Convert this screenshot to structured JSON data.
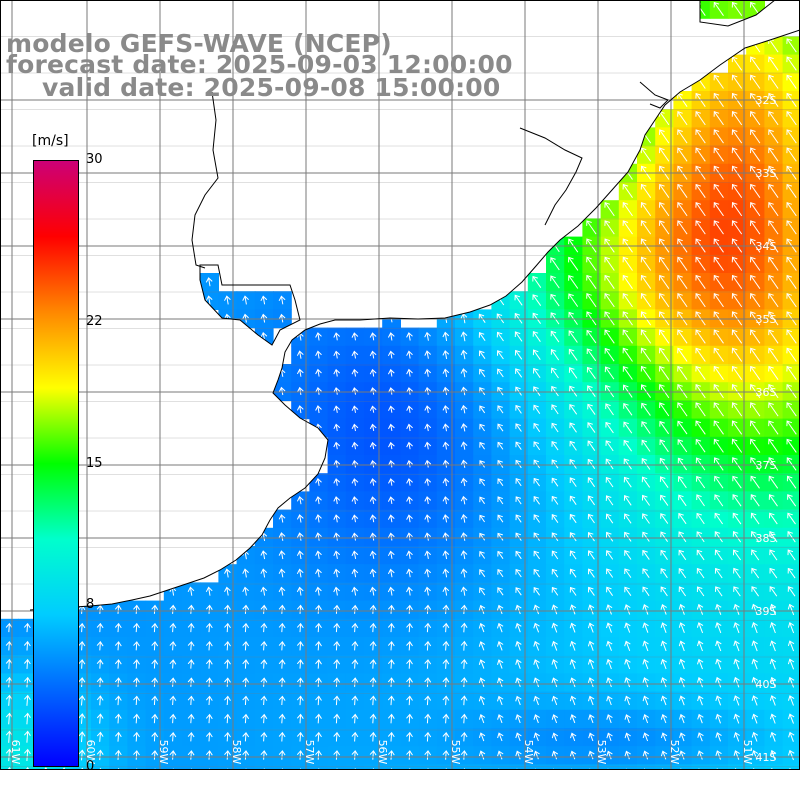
{
  "title": {
    "line1": "modelo GEFS-WAVE (NCEP)",
    "line2": "forecast date: 2025-09-03 12:00:00",
    "line3": "valid date: 2025-09-08 15:00:00"
  },
  "colorbar": {
    "unit": "[m/s]",
    "ticks": [
      {
        "label": "30",
        "value": 30
      },
      {
        "label": "22",
        "value": 22
      },
      {
        "label": "15",
        "value": 15
      },
      {
        "label": "8",
        "value": 8
      },
      {
        "label": "0",
        "value": 0
      }
    ],
    "range": [
      0,
      30
    ],
    "colors": [
      "#0000ff",
      "#0066ff",
      "#00ccff",
      "#00ffcc",
      "#00ff00",
      "#ffff00",
      "#ff8800",
      "#ff0000",
      "#cc0077"
    ]
  },
  "map": {
    "latitude_labels": [
      "32S",
      "33S",
      "34S",
      "35S",
      "36S",
      "37S",
      "38S",
      "39S",
      "40S",
      "41S"
    ],
    "longitude_labels": [
      "61W",
      "60W",
      "59W",
      "58W",
      "57W",
      "56W",
      "55W",
      "54W",
      "53W",
      "52W",
      "51W"
    ],
    "lon_range": [
      -61.5,
      -50.5
    ],
    "lat_range": [
      -41.2,
      -30.3
    ],
    "land_color": "#ffffff",
    "grid_color": "#7a7a7a",
    "coast_color": "#000000",
    "arrow_color": "#ffffff",
    "field_description": "wind speed (m/s) with direction arrows"
  }
}
